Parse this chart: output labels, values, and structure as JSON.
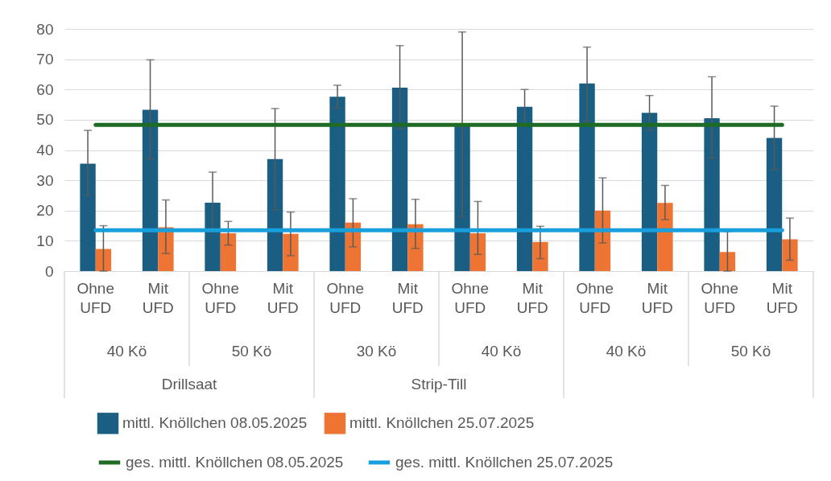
{
  "chart_data": {
    "type": "bar",
    "categories": [
      "Ohne UFD",
      "Mit UFD",
      "Ohne UFD",
      "Mit UFD",
      "Ohne UFD",
      "Mit UFD",
      "Ohne UFD",
      "Mit UFD",
      "Ohne UFD",
      "Mit UFD",
      "Ohne UFD",
      "Mit UFD"
    ],
    "series": [
      {
        "name": "mittl. Knöllchen 08.05.2025",
        "color": "#1a5f83",
        "values": [
          35.5,
          53.3,
          22.6,
          37,
          57.6,
          60.6,
          48.3,
          54.3,
          62,
          52.3,
          50.5,
          44
        ],
        "errors": [
          [
            25,
            46.5
          ],
          [
            37,
            69.8
          ],
          [
            13,
            32.7
          ],
          [
            20.3,
            53.7
          ],
          [
            53.8,
            61.4
          ],
          [
            47,
            74.5
          ],
          [
            18,
            79
          ],
          [
            48,
            60
          ],
          [
            49.5,
            74
          ],
          [
            46.5,
            58
          ],
          [
            37.3,
            64.2
          ],
          [
            33.5,
            54.5
          ]
        ]
      },
      {
        "name": "mittl. Knöllchen 25.07.2025",
        "color": "#ed7433",
        "values": [
          7.3,
          14.5,
          12.5,
          12.3,
          16,
          15.5,
          12.5,
          9.6,
          20,
          22.5,
          6.3,
          10.5
        ],
        "errors": [
          [
            0,
            15
          ],
          [
            5.8,
            23.5
          ],
          [
            8.6,
            16.4
          ],
          [
            5.1,
            19.5
          ],
          [
            8,
            23.9
          ],
          [
            7.5,
            23.7
          ],
          [
            5.5,
            23
          ],
          [
            4.1,
            14.8
          ],
          [
            9.3,
            30.8
          ],
          [
            17,
            28.3
          ],
          [
            0,
            13
          ],
          [
            3.6,
            17.5
          ]
        ]
      },
      {
        "name": "ges. mittl. Knöllchen 08.05.2025",
        "type": "line",
        "color": "#1e6b26",
        "values": [
          48.3,
          48.3,
          48.3,
          48.3,
          48.3,
          48.3,
          48.3,
          48.3,
          48.3,
          48.3,
          48.3,
          48.3
        ]
      },
      {
        "name": "ges. mittl. Knöllchen 25.07.2025",
        "type": "line",
        "color": "#19a0dc",
        "values": [
          13.5,
          13.5,
          13.5,
          13.5,
          13.5,
          13.5,
          13.5,
          13.5,
          13.5,
          13.5,
          13.5,
          13.5
        ]
      }
    ],
    "ylim": [
      0,
      80
    ],
    "yticks": [
      0,
      10,
      20,
      30,
      40,
      50,
      60,
      70,
      80
    ],
    "grid": "y",
    "legend": "bottom",
    "annotations": [
      "40 Kö",
      "50 Kö",
      "30 Kö",
      "40 Kö",
      "40 Kö",
      "50 Kö",
      "Drillsaat",
      "Strip-Till"
    ]
  }
}
